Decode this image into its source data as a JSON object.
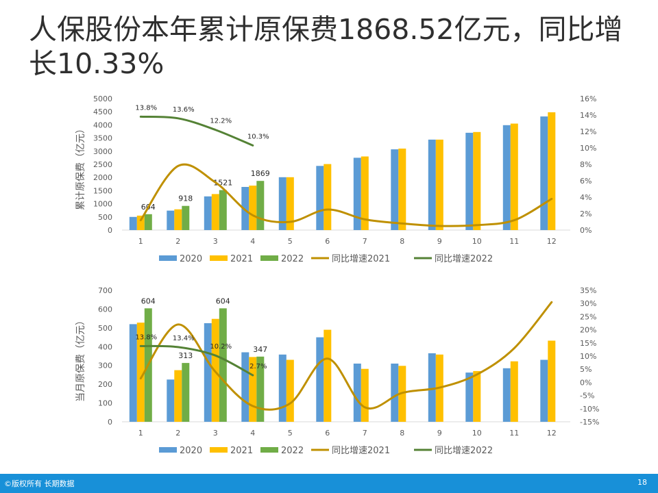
{
  "title": "人保股份本年累计原保费1868.52亿元，同比增长10.33%",
  "footer": {
    "copyright": "©版权所有 长期数据",
    "page": "18"
  },
  "colors": {
    "c2020": "#5b9bd5",
    "c2021": "#ffc000",
    "c2022": "#70ad47",
    "g2021": "#bf9000",
    "g2022": "#548235",
    "axis": "#d9d9d9",
    "text": "#595959"
  },
  "chart_data": [
    {
      "type": "bar",
      "ylabel": "累计原保费（亿元）",
      "categories": [
        "1",
        "2",
        "3",
        "4",
        "5",
        "6",
        "7",
        "8",
        "9",
        "10",
        "11",
        "12"
      ],
      "ylim": [
        0,
        5000
      ],
      "yticks": [
        0,
        500,
        1000,
        1500,
        2000,
        2500,
        3000,
        3500,
        4000,
        4500,
        5000
      ],
      "y2lim": [
        0,
        0.16
      ],
      "y2ticks": [
        "0%",
        "2%",
        "4%",
        "6%",
        "8%",
        "10%",
        "12%",
        "14%",
        "16%"
      ],
      "legend_position": "bottom",
      "grid": false,
      "series": [
        {
          "name": "2020",
          "kind": "bar",
          "values": [
            500,
            740,
            1280,
            1640,
            2010,
            2440,
            2750,
            3070,
            3440,
            3700,
            3990,
            4320
          ]
        },
        {
          "name": "2021",
          "kind": "bar",
          "values": [
            550,
            790,
            1370,
            1690,
            2010,
            2510,
            2800,
            3100,
            3440,
            3730,
            4050,
            4480
          ]
        },
        {
          "name": "2022",
          "kind": "bar",
          "values": [
            604,
            918,
            1521,
            1869,
            null,
            null,
            null,
            null,
            null,
            null,
            null,
            null
          ],
          "labels": [
            "604",
            "918",
            "1521",
            "1869"
          ]
        },
        {
          "name": "同比增速2021",
          "kind": "line",
          "axis": "right",
          "values": [
            0.012,
            0.078,
            0.058,
            0.018,
            0.01,
            0.025,
            0.013,
            0.008,
            0.005,
            0.006,
            0.012,
            0.038
          ]
        },
        {
          "name": "同比增速2022",
          "kind": "line",
          "axis": "right",
          "values": [
            0.138,
            0.136,
            0.122,
            0.103,
            null,
            null,
            null,
            null,
            null,
            null,
            null,
            null
          ],
          "labels": [
            "13.8%",
            "13.6%",
            "12.2%",
            "10.3%"
          ]
        }
      ]
    },
    {
      "type": "bar",
      "ylabel": "当月原保费（亿元）",
      "categories": [
        "1",
        "2",
        "3",
        "4",
        "5",
        "6",
        "7",
        "8",
        "9",
        "10",
        "11",
        "12"
      ],
      "ylim": [
        0,
        700
      ],
      "yticks": [
        0,
        100,
        200,
        300,
        400,
        500,
        600,
        700
      ],
      "y2lim": [
        -0.15,
        0.35
      ],
      "y2ticks": [
        "-15%",
        "-10%",
        "-5%",
        "0%",
        "5%",
        "10%",
        "15%",
        "20%",
        "25%",
        "30%",
        "35%"
      ],
      "legend_position": "bottom",
      "grid": false,
      "series": [
        {
          "name": "2020",
          "kind": "bar",
          "values": [
            520,
            225,
            525,
            370,
            358,
            450,
            310,
            310,
            365,
            262,
            285,
            330
          ]
        },
        {
          "name": "2021",
          "kind": "bar",
          "values": [
            528,
            275,
            548,
            345,
            330,
            490,
            282,
            298,
            358,
            270,
            322,
            432
          ]
        },
        {
          "name": "2022",
          "kind": "bar",
          "values": [
            604,
            313,
            604,
            347,
            null,
            null,
            null,
            null,
            null,
            null,
            null,
            null
          ],
          "labels": [
            "604",
            "313",
            "604",
            "347"
          ]
        },
        {
          "name": "同比增速2021",
          "kind": "line",
          "axis": "right",
          "values": [
            0.015,
            0.22,
            0.04,
            -0.09,
            -0.08,
            0.09,
            -0.095,
            -0.04,
            -0.02,
            0.03,
            0.13,
            0.305
          ]
        },
        {
          "name": "同比增速2022",
          "kind": "line",
          "axis": "right",
          "values": [
            0.138,
            0.134,
            0.102,
            0.027,
            null,
            null,
            null,
            null,
            null,
            null,
            null,
            null
          ],
          "labels": [
            "13.8%",
            "13.4%",
            "10.2%",
            "2.7%"
          ]
        }
      ]
    }
  ]
}
